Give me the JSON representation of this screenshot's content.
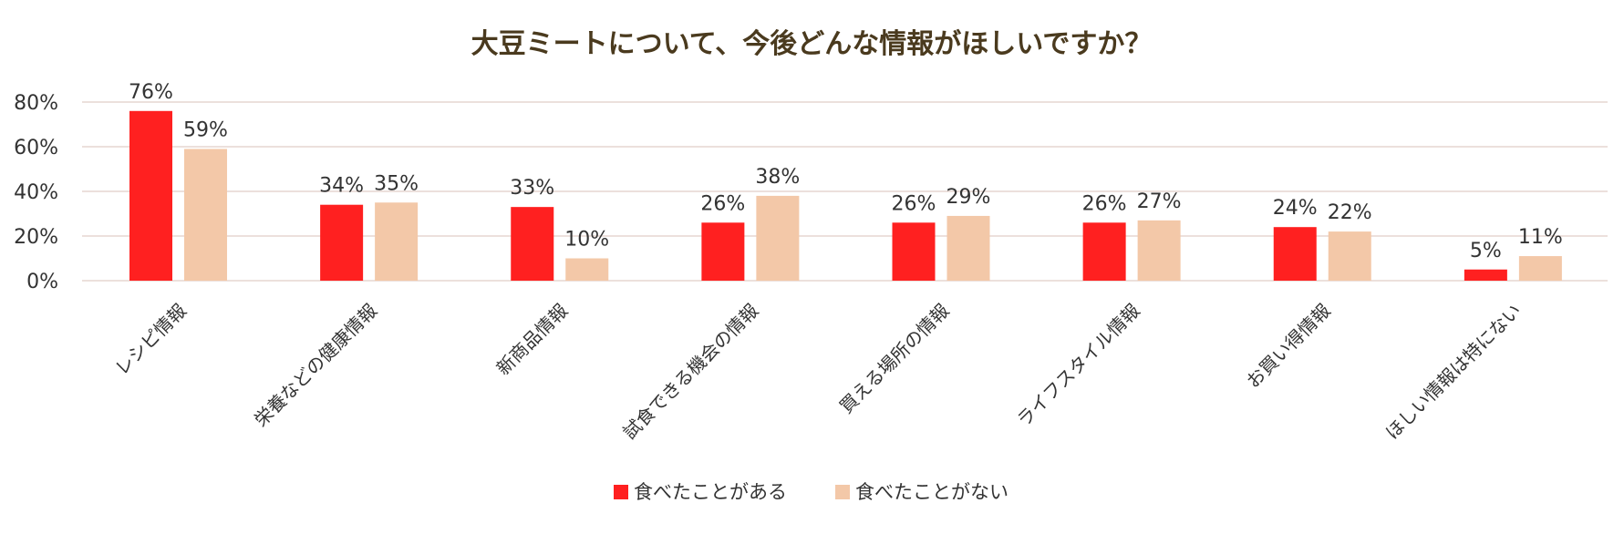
{
  "chart_data": {
    "type": "bar",
    "title": "大豆ミートについて、今後どんな情報がほしいですか？",
    "categories": [
      "レシピ情報",
      "栄養などの健康情報",
      "新商品情報",
      "試食できる機会の情報",
      "買える場所の情報",
      "ライフスタイル情報",
      "お買い得情報",
      "ほしい情報は特にない"
    ],
    "series": [
      {
        "name": "食べたことがある",
        "color": "#ff2020",
        "values": [
          76,
          34,
          33,
          26,
          26,
          26,
          24,
          5
        ],
        "labels": [
          "76%",
          "34%",
          "33%",
          "26%",
          "26%",
          "26%",
          "24%",
          "5%"
        ]
      },
      {
        "name": "食べたことがない",
        "color": "#f3c8a8",
        "values": [
          59,
          35,
          10,
          38,
          29,
          27,
          22,
          11
        ],
        "labels": [
          "59%",
          "35%",
          "10%",
          "38%",
          "29%",
          "27%",
          "22%",
          "11%"
        ]
      }
    ],
    "ylim": [
      0,
      80
    ],
    "yticks": [
      0,
      20,
      40,
      60,
      80
    ],
    "ytick_labels": [
      "0%",
      "20%",
      "40%",
      "60%",
      "80%"
    ],
    "xlabel": "",
    "ylabel": "",
    "grid": true,
    "legend_position": "bottom"
  }
}
